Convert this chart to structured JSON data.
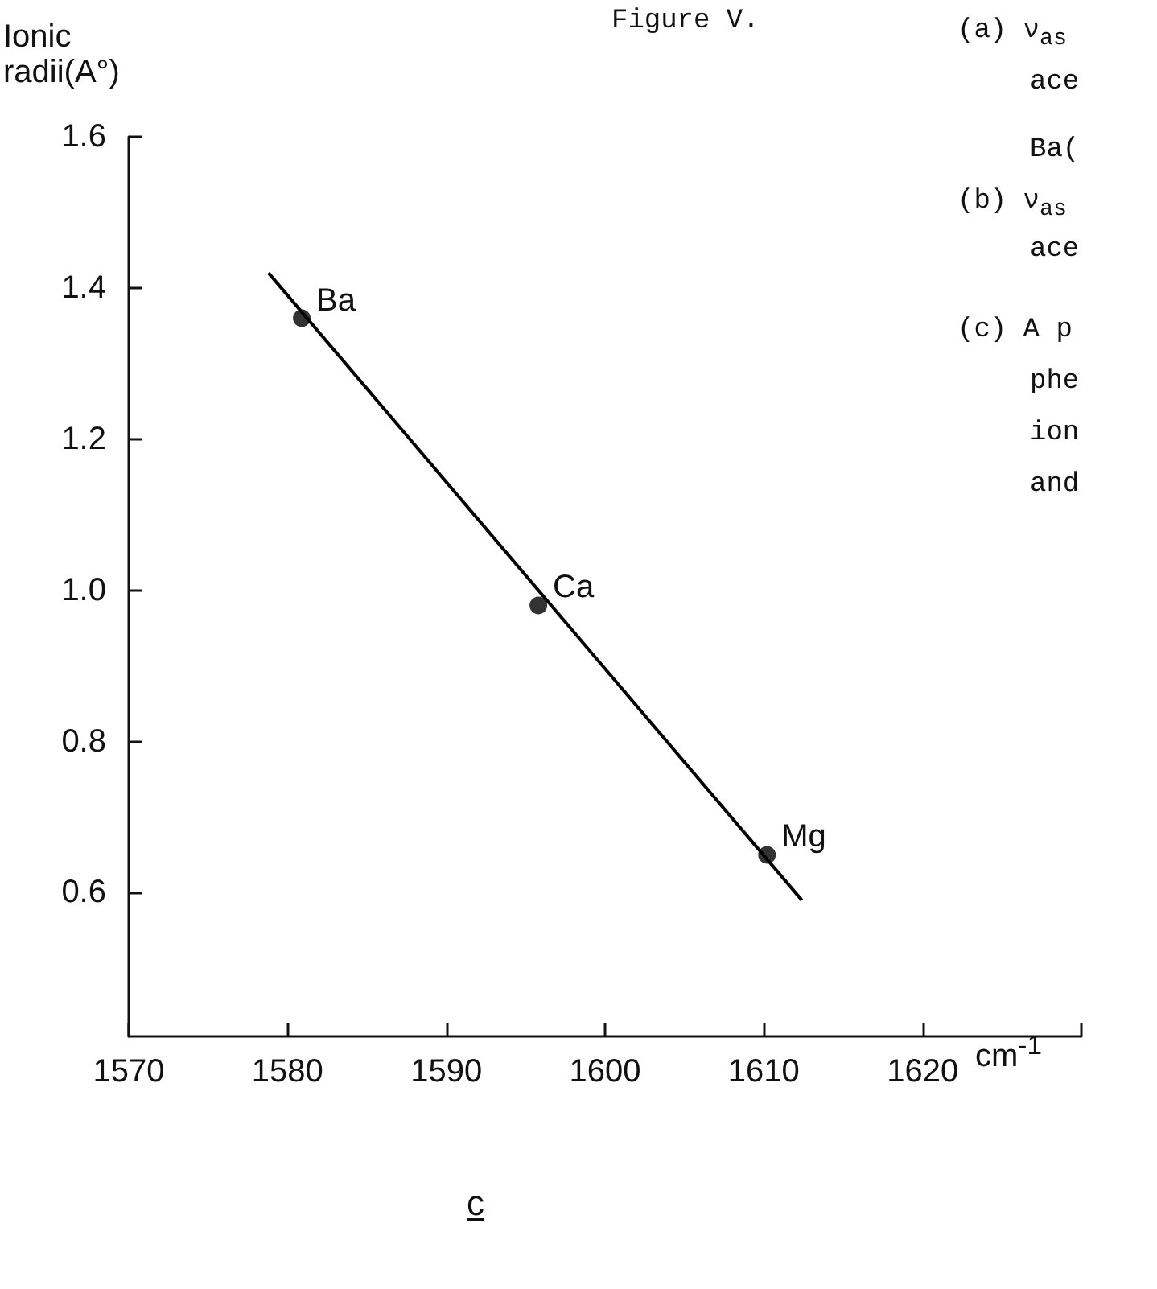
{
  "chart_data": {
    "type": "scatter",
    "xlabel": "cm$^{-1}$",
    "ylabel": "Ionic radii(A°)",
    "xlim": [
      1570,
      1630
    ],
    "xticks": [
      1570,
      1580,
      1590,
      1600,
      1610,
      1620,
      {
        "value": 1630,
        "label": null
      }
    ],
    "ylim": [
      0.41,
      1.6
    ],
    "yticks": [
      0.6,
      0.8,
      {
        "value": 1.0,
        "label": "1.0"
      },
      1.2,
      1.4,
      1.6
    ],
    "series": [
      {
        "color": "#000000",
        "marker": "circle",
        "x": [
          1580.9,
          1595.8,
          1610.2
        ],
        "values": [
          1.36,
          0.98,
          0.65
        ]
      },
      {
        "type": "line",
        "color": "#000000",
        "marker": "none",
        "line_style": "solid",
        "x": [
          1578.8,
          1612.4
        ],
        "values": [
          1.42,
          0.59
        ]
      }
    ],
    "annotations": [
      {
        "text": "Ba",
        "x": 1580.9,
        "y": 1.36
      },
      {
        "text": "Ca",
        "x": 1595.8,
        "y": 0.98
      },
      {
        "text": "Mg",
        "x": 1610.2,
        "y": 0.65
      },
      "Figure V.",
      "(a) ν$_{as}$",
      "ace",
      "Ba(",
      "(b) ν$_{as}$",
      "ace",
      "(c) A p",
      "phe",
      "ion",
      "and",
      "c"
    ],
    "grid": false
  }
}
